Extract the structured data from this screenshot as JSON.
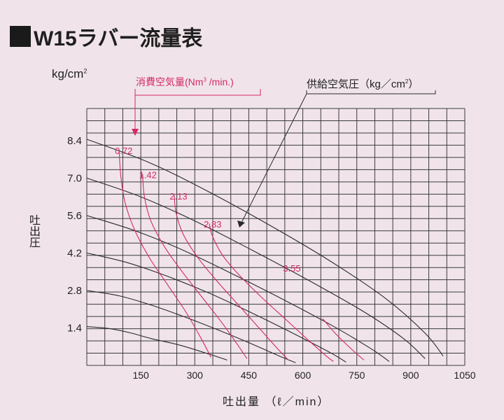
{
  "title": "W15ラバー流量表",
  "y_unit": "kg/cm",
  "y_unit_sup": "2",
  "y_axis_label": "吐出圧",
  "x_axis_label": "吐出量 （ℓ／min）",
  "consumption_label_pre": "消費空気量(Nm",
  "consumption_label_sup": "3",
  "consumption_label_post": " /min.)",
  "supply_label_pre": "供給空気圧（kg／cm",
  "supply_label_sup": "2",
  "supply_label_post": "）",
  "colors": {
    "supply_curve": "#2a2a2a",
    "consumption_curve": "#d42a64",
    "grid": "#3a3a3a",
    "background": "#f0e4ea"
  },
  "chart_data": {
    "type": "line",
    "xlim": [
      0,
      1050
    ],
    "ylim": [
      0,
      9.6
    ],
    "x_ticks": [
      150,
      300,
      450,
      600,
      750,
      900,
      1050
    ],
    "y_ticks": [
      1.4,
      2.8,
      4.2,
      5.6,
      7.0,
      8.4
    ],
    "x_tick_labels": [
      "150",
      "300",
      "450",
      "600",
      "750",
      "900",
      "1050"
    ],
    "y_tick_labels": [
      "1.4",
      "2.8",
      "4.2",
      "5.6",
      "7.0",
      "8.4"
    ],
    "grid": true,
    "supply_pressure_curves": [
      {
        "points": [
          [
            0,
            1.45
          ],
          [
            60,
            1.38
          ],
          [
            120,
            1.22
          ],
          [
            180,
            1.0
          ],
          [
            260,
            0.75
          ],
          [
            340,
            0.42
          ],
          [
            390,
            0.2
          ]
        ]
      },
      {
        "points": [
          [
            0,
            2.8
          ],
          [
            90,
            2.6
          ],
          [
            180,
            2.25
          ],
          [
            270,
            1.82
          ],
          [
            360,
            1.35
          ],
          [
            450,
            0.85
          ],
          [
            540,
            0.32
          ],
          [
            580,
            0.1
          ]
        ]
      },
      {
        "points": [
          [
            0,
            4.2
          ],
          [
            110,
            3.85
          ],
          [
            220,
            3.35
          ],
          [
            340,
            2.7
          ],
          [
            460,
            1.95
          ],
          [
            580,
            1.15
          ],
          [
            680,
            0.45
          ],
          [
            720,
            0.12
          ]
        ]
      },
      {
        "points": [
          [
            0,
            5.6
          ],
          [
            130,
            5.05
          ],
          [
            260,
            4.35
          ],
          [
            400,
            3.45
          ],
          [
            540,
            2.5
          ],
          [
            680,
            1.5
          ],
          [
            790,
            0.62
          ],
          [
            840,
            0.15
          ]
        ]
      },
      {
        "points": [
          [
            0,
            7.0
          ],
          [
            150,
            6.3
          ],
          [
            300,
            5.4
          ],
          [
            460,
            4.3
          ],
          [
            620,
            3.15
          ],
          [
            770,
            2.0
          ],
          [
            880,
            1.0
          ],
          [
            940,
            0.25
          ]
        ]
      },
      {
        "points": [
          [
            0,
            8.45
          ],
          [
            170,
            7.6
          ],
          [
            330,
            6.55
          ],
          [
            500,
            5.3
          ],
          [
            670,
            3.95
          ],
          [
            830,
            2.5
          ],
          [
            940,
            1.2
          ],
          [
            990,
            0.35
          ]
        ]
      }
    ],
    "consumption_curves": [
      {
        "label": "0.72",
        "points": [
          [
            90,
            8.0
          ],
          [
            95,
            7.0
          ],
          [
            108,
            6.0
          ],
          [
            135,
            5.0
          ],
          [
            175,
            4.0
          ],
          [
            225,
            3.0
          ],
          [
            275,
            2.0
          ],
          [
            318,
            1.0
          ],
          [
            345,
            0.3
          ]
        ]
      },
      {
        "label": "1.42",
        "points": [
          [
            155,
            7.15
          ],
          [
            160,
            6.3
          ],
          [
            178,
            5.4
          ],
          [
            215,
            4.45
          ],
          [
            265,
            3.5
          ],
          [
            320,
            2.55
          ],
          [
            375,
            1.6
          ],
          [
            420,
            0.75
          ],
          [
            445,
            0.25
          ]
        ]
      },
      {
        "label": "2.13",
        "points": [
          [
            243,
            6.35
          ],
          [
            248,
            5.7
          ],
          [
            268,
            4.9
          ],
          [
            310,
            4.0
          ],
          [
            365,
            3.1
          ],
          [
            425,
            2.2
          ],
          [
            485,
            1.3
          ],
          [
            535,
            0.55
          ],
          [
            560,
            0.2
          ]
        ]
      },
      {
        "label": "2.83",
        "points": [
          [
            340,
            5.3
          ],
          [
            350,
            4.8
          ],
          [
            378,
            4.1
          ],
          [
            425,
            3.35
          ],
          [
            485,
            2.55
          ],
          [
            550,
            1.75
          ],
          [
            615,
            0.95
          ],
          [
            665,
            0.35
          ],
          [
            685,
            0.15
          ]
        ]
      },
      {
        "label": "3.55",
        "points": [
          [
            655,
            1.75
          ],
          [
            690,
            1.2
          ],
          [
            740,
            0.55
          ],
          [
            770,
            0.2
          ]
        ]
      }
    ],
    "consumption_value_labels": [
      {
        "text": "0.72",
        "x": 78,
        "y": 7.9
      },
      {
        "text": "1.42",
        "x": 145,
        "y": 7.0
      },
      {
        "text": "2.13",
        "x": 230,
        "y": 6.2
      },
      {
        "text": "2.83",
        "x": 325,
        "y": 5.15
      },
      {
        "text": "3.55",
        "x": 545,
        "y": 3.5
      }
    ]
  }
}
